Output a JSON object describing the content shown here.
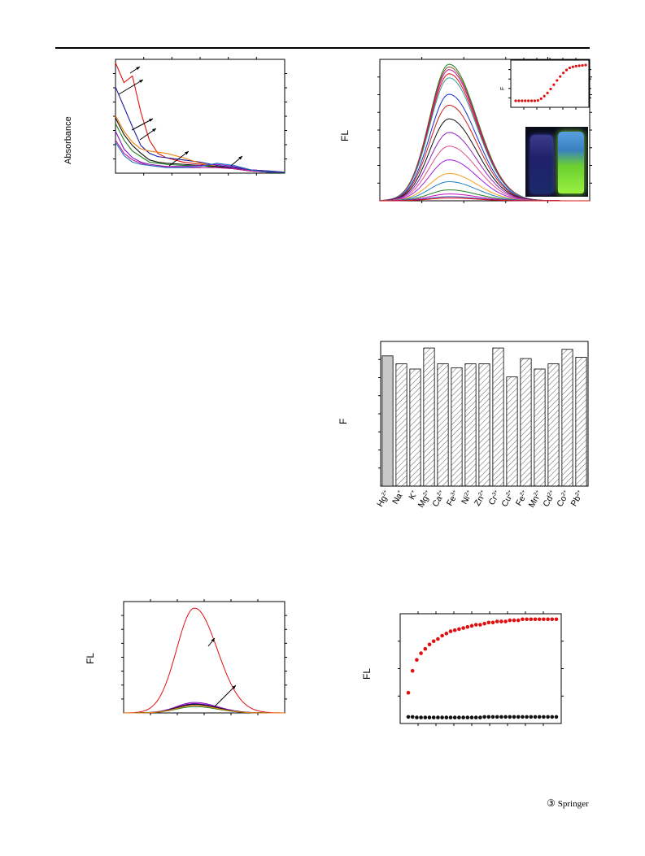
{
  "page": {
    "publisher": "Springer",
    "publisher_mark": "③"
  },
  "chart_data": [
    {
      "id": "uv-vis",
      "type": "line",
      "ylabel": "Absorbance",
      "xlabel": "",
      "x": [
        0,
        5,
        10,
        15,
        20,
        25,
        30,
        40,
        50,
        60,
        70,
        80,
        90,
        100
      ],
      "series": [
        {
          "color": "#e01010",
          "values": [
            1.0,
            0.82,
            0.88,
            0.55,
            0.3,
            0.18,
            0.14,
            0.1,
            0.08,
            0.06,
            0.05,
            0.03,
            0.02,
            0.01
          ]
        },
        {
          "color": "#1a1aa0",
          "values": [
            0.78,
            0.6,
            0.42,
            0.25,
            0.18,
            0.15,
            0.14,
            0.12,
            0.1,
            0.07,
            0.05,
            0.03,
            0.02,
            0.01
          ]
        },
        {
          "color": "#f08010",
          "values": [
            0.52,
            0.38,
            0.28,
            0.22,
            0.2,
            0.19,
            0.18,
            0.14,
            0.09,
            0.06,
            0.04,
            0.02,
            0.01,
            0.01
          ]
        },
        {
          "color": "#101010",
          "values": [
            0.5,
            0.35,
            0.25,
            0.18,
            0.12,
            0.1,
            0.09,
            0.08,
            0.07,
            0.06,
            0.04,
            0.02,
            0.01,
            0.01
          ]
        },
        {
          "color": "#208020",
          "values": [
            0.45,
            0.3,
            0.2,
            0.15,
            0.1,
            0.09,
            0.08,
            0.07,
            0.07,
            0.05,
            0.04,
            0.02,
            0.01,
            0.01
          ]
        },
        {
          "color": "#8010c0",
          "values": [
            0.38,
            0.22,
            0.14,
            0.1,
            0.08,
            0.07,
            0.06,
            0.06,
            0.07,
            0.08,
            0.06,
            0.03,
            0.01,
            0.01
          ]
        },
        {
          "color": "#c010a0",
          "values": [
            0.3,
            0.18,
            0.12,
            0.09,
            0.07,
            0.06,
            0.06,
            0.05,
            0.05,
            0.05,
            0.04,
            0.02,
            0.01,
            0.01
          ]
        },
        {
          "color": "#2070c0",
          "values": [
            0.28,
            0.16,
            0.1,
            0.08,
            0.07,
            0.06,
            0.05,
            0.05,
            0.06,
            0.09,
            0.07,
            0.03,
            0.01,
            0.01
          ]
        }
      ]
    },
    {
      "id": "fl-titration",
      "type": "line",
      "ylabel": "FL",
      "xlabel": "",
      "peak_x": 0.33,
      "series_peaks": [
        1.0,
        0.98,
        0.96,
        0.93,
        0.9,
        0.78,
        0.7,
        0.6,
        0.5,
        0.4,
        0.3,
        0.2,
        0.14,
        0.08,
        0.05,
        0.03,
        0.02
      ],
      "series_colors": [
        "#208020",
        "#8a5020",
        "#c010a0",
        "#e01010",
        "#2aa0a0",
        "#1030d0",
        "#d02020",
        "#101010",
        "#9020c0",
        "#e05090",
        "#a020e0",
        "#f0a020",
        "#2080c0",
        "#208020",
        "#c010c0",
        "#3030a0",
        "#e01010"
      ]
    },
    {
      "id": "inset-titration",
      "type": "scatter",
      "ylabel": "F",
      "points": [
        0.0,
        0.0,
        0.0,
        0.0,
        0.0,
        0.0,
        0.0,
        0.01,
        0.06,
        0.13,
        0.22,
        0.33,
        0.45,
        0.57,
        0.68,
        0.78,
        0.86,
        0.92,
        0.95,
        0.97,
        0.98,
        0.99,
        1.0
      ]
    },
    {
      "id": "selectivity",
      "type": "bar",
      "ylabel": "F",
      "categories": [
        "Hg2+",
        "Na+",
        "K+",
        "Mg2+",
        "Ca2+",
        "Fe3+",
        "Ni2+",
        "Zn2+",
        "Cr3+",
        "Cu2+",
        "Fe2+",
        "Mn2+",
        "Cd2+",
        "Co2+",
        "Pb2+"
      ],
      "labels": [
        {
          "base": "Hg",
          "sup": "2+"
        },
        {
          "base": "Na",
          "sup": "+"
        },
        {
          "base": "K",
          "sup": "+"
        },
        {
          "base": "Mg",
          "sup": "2+"
        },
        {
          "base": "Ca",
          "sup": "2+"
        },
        {
          "base": "Fe",
          "sup": "3+"
        },
        {
          "base": "Ni",
          "sup": "2+"
        },
        {
          "base": "Zn",
          "sup": "2+"
        },
        {
          "base": "Cr",
          "sup": "3+"
        },
        {
          "base": "Cu",
          "sup": "2+"
        },
        {
          "base": "Fe",
          "sup": "2+"
        },
        {
          "base": "Mn",
          "sup": "2+"
        },
        {
          "base": "Cd",
          "sup": "2+"
        },
        {
          "base": "Co",
          "sup": "2+"
        },
        {
          "base": "Pb",
          "sup": "2+"
        }
      ],
      "values": [
        0.99,
        0.93,
        0.89,
        1.05,
        0.93,
        0.9,
        0.93,
        0.93,
        1.05,
        0.83,
        0.97,
        0.89,
        0.93,
        1.04,
        0.98
      ],
      "ylim": [
        0,
        1.1
      ]
    },
    {
      "id": "fl-hg-vs-others",
      "type": "line",
      "ylabel": "FL",
      "series": [
        {
          "color": "#e01010",
          "peak": 1.0
        },
        {
          "color": "#8010c0",
          "peak": 0.1
        },
        {
          "color": "#c010a0",
          "peak": 0.09
        },
        {
          "color": "#1a1aa0",
          "peak": 0.085
        },
        {
          "color": "#101010",
          "peak": 0.08
        },
        {
          "color": "#208020",
          "peak": 0.06
        },
        {
          "color": "#f08010",
          "peak": 0.07
        }
      ]
    },
    {
      "id": "fl-time",
      "type": "scatter",
      "ylabel": "FL",
      "series": [
        {
          "color": "#e01010",
          "values": [
            0.28,
            0.48,
            0.58,
            0.64,
            0.68,
            0.72,
            0.75,
            0.77,
            0.8,
            0.82,
            0.84,
            0.85,
            0.86,
            0.87,
            0.88,
            0.89,
            0.9,
            0.9,
            0.91,
            0.92,
            0.92,
            0.93,
            0.93,
            0.93,
            0.94,
            0.94,
            0.94,
            0.95,
            0.95,
            0.95,
            0.95,
            0.95,
            0.95,
            0.95,
            0.95,
            0.95
          ]
        },
        {
          "color": "#101010",
          "values": [
            0.06,
            0.06,
            0.055,
            0.055,
            0.055,
            0.055,
            0.055,
            0.055,
            0.055,
            0.055,
            0.055,
            0.055,
            0.055,
            0.055,
            0.055,
            0.055,
            0.055,
            0.055,
            0.06,
            0.06,
            0.06,
            0.06,
            0.06,
            0.06,
            0.06,
            0.06,
            0.06,
            0.06,
            0.06,
            0.06,
            0.06,
            0.06,
            0.06,
            0.06,
            0.06,
            0.06
          ]
        }
      ]
    }
  ]
}
